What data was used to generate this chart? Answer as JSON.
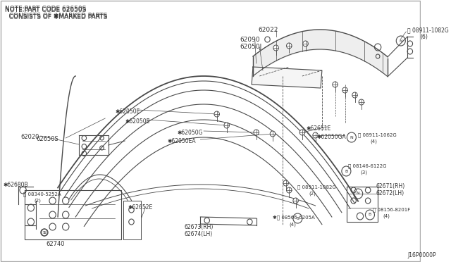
{
  "bg_color": "#ffffff",
  "line_color": "#4a4a4a",
  "text_color": "#333333",
  "note_line1": "NOTE:PART CODE 62650S",
  "note_line2": "  CONSISTS OF *MARKED PARTS",
  "diagram_code": "J16P0000P"
}
